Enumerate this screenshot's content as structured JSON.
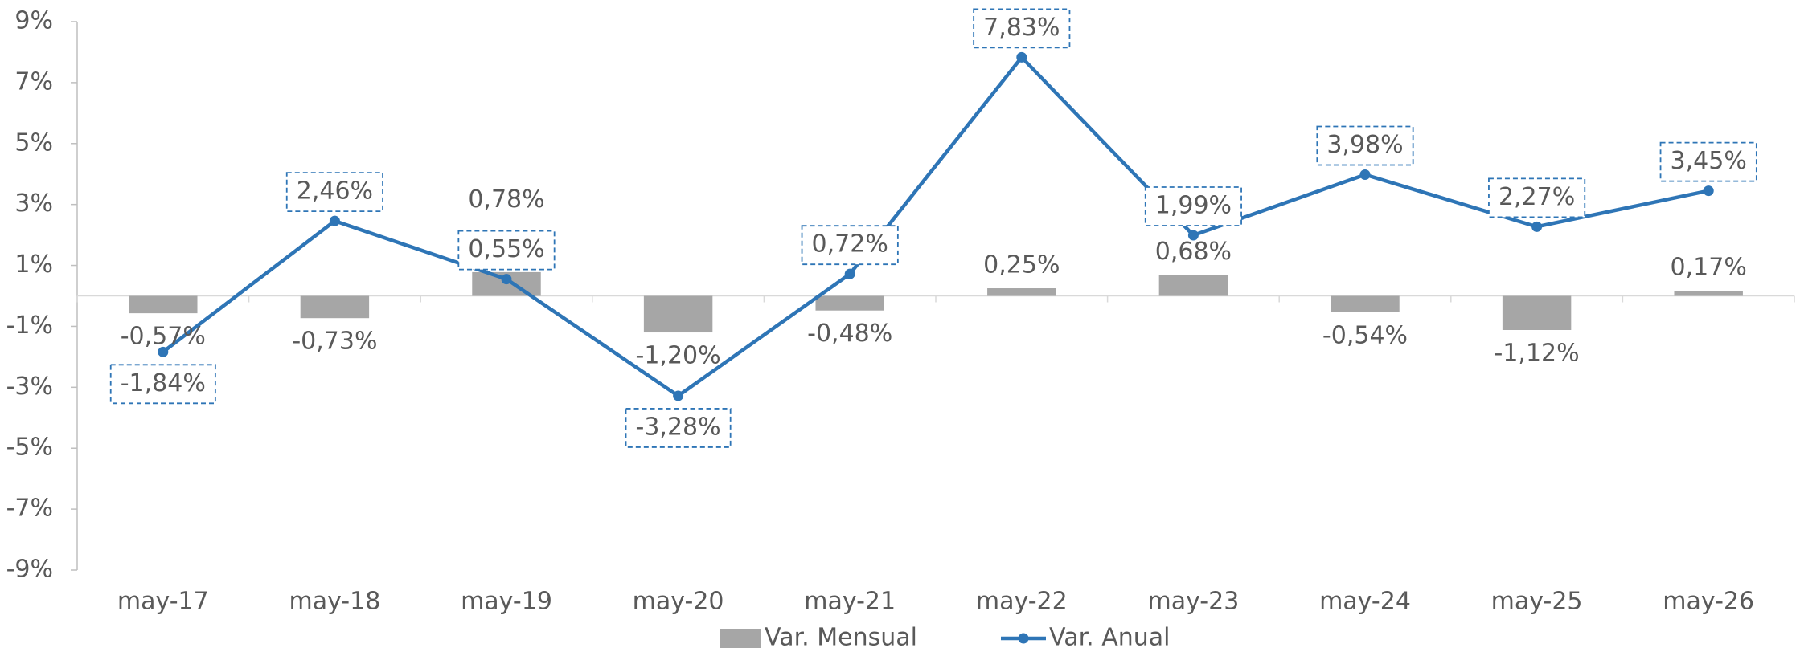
{
  "chart_data": {
    "type": "bar_line",
    "categories": [
      "may-17",
      "may-18",
      "may-19",
      "may-20",
      "may-21",
      "may-22",
      "may-23",
      "may-24",
      "may-25",
      "may-26"
    ],
    "series": [
      {
        "name": "Var. Mensual",
        "type": "bar",
        "color": "#a6a6a6",
        "values": [
          -0.57,
          -0.73,
          0.78,
          -1.2,
          -0.48,
          0.25,
          0.68,
          -0.54,
          -1.12,
          0.17
        ],
        "value_labels": [
          "-0,57%",
          "-0,73%",
          "0,78%",
          "-1,20%",
          "-0,48%",
          "0,25%",
          "0,68%",
          "-0,54%",
          "-1,12%",
          "0,17%"
        ]
      },
      {
        "name": "Var. Anual",
        "type": "line",
        "color": "#2e75b6",
        "values": [
          -1.84,
          2.46,
          0.55,
          -3.28,
          0.72,
          7.83,
          1.99,
          3.98,
          2.27,
          3.45
        ],
        "value_labels": [
          "-1,84%",
          "2,46%",
          "0,55%",
          "-3,28%",
          "0,72%",
          "7,83%",
          "1,99%",
          "3,98%",
          "2,27%",
          "3,45%"
        ]
      }
    ],
    "ylim": [
      -9,
      9
    ],
    "yticks": [
      {
        "value": -9,
        "label": "-9%"
      },
      {
        "value": -7,
        "label": "-7%"
      },
      {
        "value": -5,
        "label": "-5%"
      },
      {
        "value": -3,
        "label": "-3%"
      },
      {
        "value": -1,
        "label": "-1%"
      },
      {
        "value": 1,
        "label": "1%"
      },
      {
        "value": 3,
        "label": "3%"
      },
      {
        "value": 5,
        "label": "5%"
      },
      {
        "value": 7,
        "label": "7%"
      },
      {
        "value": 9,
        "label": "9%"
      }
    ],
    "legend": "bottom"
  }
}
